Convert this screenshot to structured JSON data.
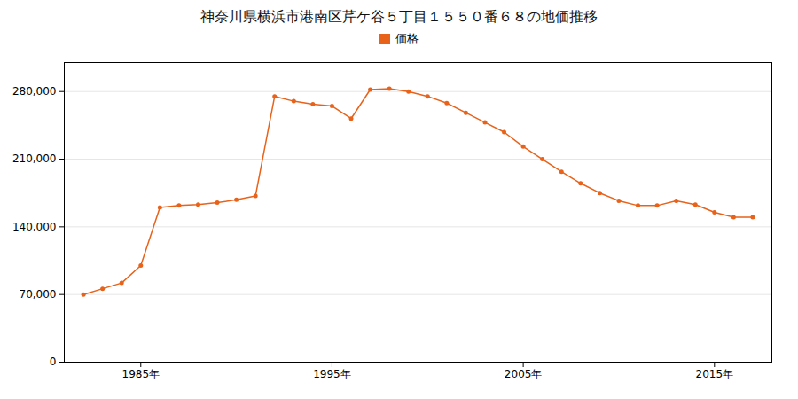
{
  "chart_data": {
    "type": "line",
    "title": "神奈川県横浜市港南区芹ケ谷５丁目１５５０番６８の地価推移",
    "x": [
      1982,
      1983,
      1984,
      1985,
      1986,
      1987,
      1988,
      1989,
      1990,
      1991,
      1992,
      1993,
      1994,
      1995,
      1996,
      1997,
      1998,
      1999,
      2000,
      2001,
      2002,
      2003,
      2004,
      2005,
      2006,
      2007,
      2008,
      2009,
      2010,
      2011,
      2012,
      2013,
      2014,
      2015,
      2016,
      2017
    ],
    "series": [
      {
        "name": "価格",
        "color": "#E8621A",
        "marker": "circle",
        "values": [
          70000,
          76000,
          82000,
          100000,
          160000,
          162000,
          163000,
          165000,
          168000,
          172000,
          275000,
          270000,
          267000,
          265000,
          252000,
          282000,
          283000,
          280000,
          275000,
          268000,
          258000,
          248000,
          238000,
          223000,
          210000,
          197000,
          185000,
          175000,
          167000,
          162000,
          162000,
          167000,
          163000,
          155000,
          150000,
          150000
        ]
      }
    ],
    "xlim": [
      1981,
      2018
    ],
    "xticks": [
      {
        "value": 1985,
        "label": "1985年"
      },
      {
        "value": 1995,
        "label": "1995年"
      },
      {
        "value": 2005,
        "label": "2005年"
      },
      {
        "value": 2015,
        "label": "2015年"
      }
    ],
    "ylim": [
      0,
      310000
    ],
    "yticks": [
      0,
      {
        "value": 70000,
        "label": "70,000"
      },
      {
        "value": 140000,
        "label": "140,000"
      },
      {
        "value": 210000,
        "label": "210,000"
      },
      {
        "value": 280000,
        "label": "280,000"
      }
    ],
    "grid": true,
    "legend": "top"
  }
}
